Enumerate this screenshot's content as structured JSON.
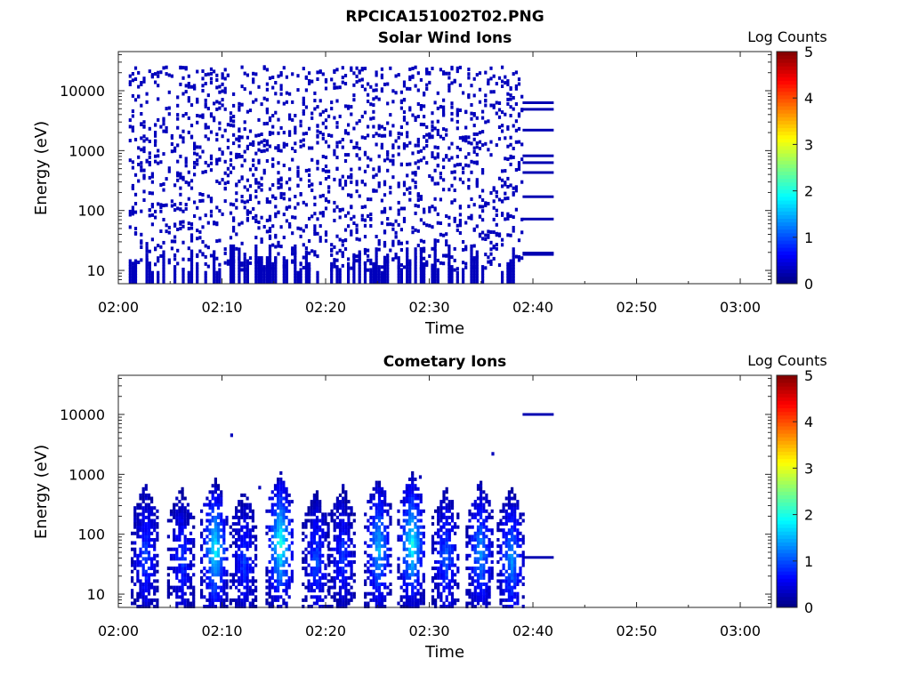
{
  "figure_title": "RPCICA151002T02.PNG",
  "colorscale": {
    "stops": [
      "#00007f",
      "#0000ff",
      "#007fff",
      "#00ffff",
      "#7fff7f",
      "#ffff00",
      "#ff7f00",
      "#ff0000",
      "#7f0000"
    ]
  },
  "chart_data": [
    {
      "type": "heatmap",
      "title": "Solar Wind Ions",
      "xlabel": "Time",
      "ylabel": "Energy (eV)",
      "ylog": true,
      "ylim": [
        6,
        45000
      ],
      "xlim_minutes": [
        0,
        63
      ],
      "x_ticks": [
        "02:00",
        "02:10",
        "02:20",
        "02:30",
        "02:40",
        "02:50",
        "03:00"
      ],
      "y_ticks": [
        "10",
        "100",
        "1000",
        "10000"
      ],
      "colorbar": {
        "label": "Log Counts",
        "ticks": [
          "0",
          "1",
          "2",
          "3",
          "4",
          "5"
        ],
        "range": [
          0,
          5
        ]
      },
      "data_extent_time": [
        "02:01",
        "02:39"
      ],
      "dense_energy_band_eV": [
        10,
        25000
      ],
      "block_start_time": "02:39",
      "block_end_time": "02:42",
      "block_energy_lines_eV": [
        6300,
        4900,
        2200,
        820,
        630,
        430,
        170,
        72,
        19.5,
        18.5
      ],
      "dominant_level": 0.3
    },
    {
      "type": "heatmap",
      "title": "Cometary Ions",
      "xlabel": "Time",
      "ylabel": "Energy (eV)",
      "ylog": true,
      "ylim": [
        6,
        45000
      ],
      "xlim_minutes": [
        0,
        63
      ],
      "x_ticks": [
        "02:00",
        "02:10",
        "02:20",
        "02:30",
        "02:40",
        "02:50",
        "03:00"
      ],
      "y_ticks": [
        "10",
        "100",
        "1000",
        "10000"
      ],
      "colorbar": {
        "label": "Log Counts",
        "ticks": [
          "0",
          "1",
          "2",
          "3",
          "4",
          "5"
        ],
        "range": [
          0,
          5
        ]
      },
      "data_extent_time": [
        "02:01",
        "02:39"
      ],
      "bursts": [
        {
          "center_time": "02:02.5",
          "peak_energy_eV": 45,
          "peak_level": 0.9
        },
        {
          "center_time": "02:06.0",
          "peak_energy_eV": 40,
          "peak_level": 0.8
        },
        {
          "center_time": "02:09.2",
          "peak_energy_eV": 55,
          "peak_level": 1.8
        },
        {
          "center_time": "02:12.0",
          "peak_energy_eV": 35,
          "peak_level": 0.8
        },
        {
          "center_time": "02:15.5",
          "peak_energy_eV": 70,
          "peak_level": 2.0
        },
        {
          "center_time": "02:19.0",
          "peak_energy_eV": 35,
          "peak_level": 0.9
        },
        {
          "center_time": "02:21.5",
          "peak_energy_eV": 45,
          "peak_level": 0.8
        },
        {
          "center_time": "02:25.0",
          "peak_energy_eV": 60,
          "peak_level": 1.5
        },
        {
          "center_time": "02:28.2",
          "peak_energy_eV": 70,
          "peak_level": 1.9
        },
        {
          "center_time": "02:31.5",
          "peak_energy_eV": 40,
          "peak_level": 1.0
        },
        {
          "center_time": "02:34.8",
          "peak_energy_eV": 50,
          "peak_level": 1.3
        },
        {
          "center_time": "02:37.8",
          "peak_energy_eV": 40,
          "peak_level": 1.3
        }
      ],
      "scattered_points": [
        {
          "time": "02:10.8",
          "energy_eV": 4500
        },
        {
          "time": "02:36.0",
          "energy_eV": 2200
        },
        {
          "time": "02:29.0",
          "energy_eV": 900
        },
        {
          "time": "02:13.5",
          "energy_eV": 600
        }
      ],
      "block_start_time": "02:39",
      "block_end_time": "02:42",
      "block_energy_lines_eV": [
        10000,
        41
      ]
    }
  ]
}
